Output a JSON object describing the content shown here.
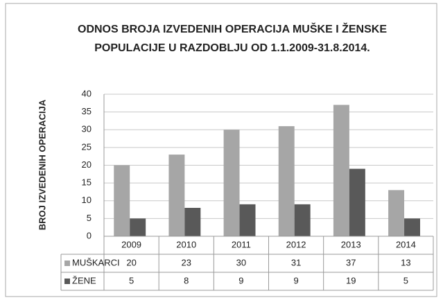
{
  "chart_data": {
    "type": "bar",
    "title": [
      "ODNOS  BROJA IZVEDENIH OPERACIJA MUŠKE I ŽENSKE",
      "POPULACIJE U RAZDOBLJU OD 1.1.2009-31.8.2014."
    ],
    "y_label": "BROJ IZVEDENIH OPERACIJA",
    "categories": [
      "2009",
      "2010",
      "2011",
      "2012",
      "2013",
      "2014"
    ],
    "series": [
      {
        "name": "MUŠKARCI",
        "color": "#a6a6a6",
        "values": [
          20,
          23,
          30,
          31,
          37,
          13
        ]
      },
      {
        "name": "ŽENE",
        "color": "#595959",
        "values": [
          5,
          8,
          9,
          9,
          19,
          5
        ]
      }
    ],
    "ylim": [
      0,
      40
    ],
    "yticks": [
      0,
      5,
      10,
      15,
      20,
      25,
      30,
      35,
      40
    ],
    "grid": true
  }
}
